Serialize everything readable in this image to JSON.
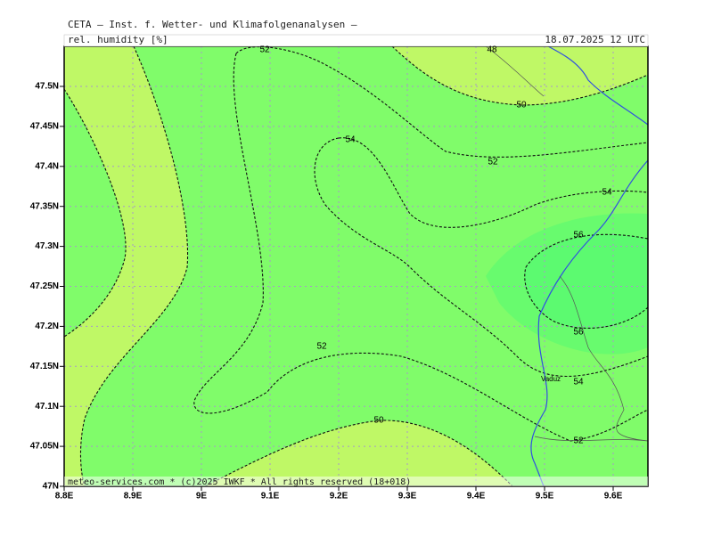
{
  "header": {
    "title": "CETA — Inst. f. Wetter- und Klimafolgenanalysen —",
    "subtitle": "rel. humidity [%]",
    "date": "18.07.2025 12 UTC"
  },
  "map": {
    "xticks": [
      "8.8E",
      "8.9E",
      "9E",
      "9.1E",
      "9.2E",
      "9.3E",
      "9.4E",
      "9.5E",
      "9.6E"
    ],
    "yticks": [
      "47N",
      "47.05N",
      "47.1N",
      "47.15N",
      "47.2N",
      "47.25N",
      "47.3N",
      "47.35N",
      "47.4N",
      "47.45N",
      "47.5N"
    ],
    "contour_labels": [
      48,
      52,
      50,
      54,
      52,
      54,
      56,
      52,
      56,
      54,
      50,
      52
    ],
    "place": "Vaduz",
    "footer": "meteo-services.com * (c)2025 IWKF * All rights reserved (18+018)"
  }
}
